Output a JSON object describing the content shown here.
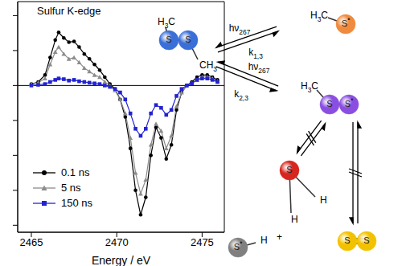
{
  "chart_data": {
    "type": "line",
    "title": "Sulfur K-edge",
    "x_label": "Energy / eV",
    "x": [
      2465.0,
      2465.4,
      2465.8,
      2466.1,
      2466.4,
      2466.6,
      2466.9,
      2467.2,
      2467.5,
      2467.8,
      2468.1,
      2468.4,
      2468.7,
      2469.0,
      2469.3,
      2469.6,
      2469.9,
      2470.2,
      2470.5,
      2470.8,
      2471.1,
      2471.4,
      2471.7,
      2472.0,
      2472.3,
      2472.6,
      2472.9,
      2473.2,
      2473.5,
      2473.8,
      2474.1,
      2474.4,
      2474.7,
      2475.0,
      2475.3,
      2475.6,
      2475.9
    ],
    "series": [
      {
        "name": "0.1 ns",
        "color": "#000000",
        "marker": "circle",
        "values": [
          0.02,
          0.05,
          0.15,
          0.4,
          0.65,
          0.76,
          0.68,
          0.62,
          0.63,
          0.55,
          0.45,
          0.38,
          0.3,
          0.22,
          0.12,
          0.02,
          -0.05,
          -0.2,
          -0.45,
          -0.9,
          -1.5,
          -1.85,
          -1.6,
          -1.0,
          -0.6,
          -0.75,
          -1.05,
          -0.85,
          -0.35,
          -0.1,
          0.0,
          0.05,
          0.12,
          0.15,
          0.15,
          0.12,
          0.08
        ]
      },
      {
        "name": "5 ns",
        "color": "#8c8c8c",
        "marker": "triangle",
        "values": [
          0.02,
          0.04,
          0.1,
          0.3,
          0.48,
          0.55,
          0.45,
          0.38,
          0.4,
          0.33,
          0.25,
          0.2,
          0.15,
          0.12,
          0.05,
          0.0,
          -0.07,
          -0.2,
          -0.4,
          -0.75,
          -1.25,
          -1.55,
          -1.35,
          -0.85,
          -0.55,
          -0.65,
          -0.9,
          -0.72,
          -0.3,
          -0.1,
          0.0,
          0.03,
          0.08,
          0.12,
          0.12,
          0.1,
          0.06
        ]
      },
      {
        "name": "150 ns",
        "color": "#2323d0",
        "marker": "square",
        "values": [
          0.0,
          0.01,
          0.02,
          0.05,
          0.08,
          0.1,
          0.09,
          0.07,
          0.08,
          0.06,
          0.05,
          0.04,
          0.03,
          0.02,
          0.0,
          -0.02,
          -0.05,
          -0.1,
          -0.2,
          -0.4,
          -0.62,
          -0.72,
          -0.62,
          -0.4,
          -0.28,
          -0.32,
          -0.42,
          -0.35,
          -0.15,
          -0.05,
          0.0,
          0.03,
          0.08,
          0.1,
          0.1,
          0.08,
          0.05
        ]
      }
    ],
    "xlim": [
      2464.2,
      2476.3
    ],
    "xticks": [
      2465,
      2470,
      2475
    ],
    "ylim": [
      -2.1,
      1.2
    ],
    "yticks": [
      -2,
      -1.5,
      -1,
      -0.5,
      0,
      0.5,
      1
    ],
    "tick_labels": "x",
    "legend": "lower left",
    "hlines": [
      0
    ]
  },
  "diagram": {
    "nodes": [
      {
        "color": "#3a6fd8",
        "texts": [
          [
            [
              "H",
              0
            ],
            [
              "3",
              1
            ],
            [
              "C",
              0
            ]
          ],
          [
            [
              "S",
              0
            ]
          ],
          [
            [
              "S",
              0
            ]
          ],
          [
            [
              "CH",
              0
            ],
            [
              "3",
              1
            ]
          ]
        ]
      },
      {
        "color": "#f08a3c",
        "texts": [
          [
            [
              "H",
              0
            ],
            [
              "3",
              1
            ],
            [
              "C",
              0
            ]
          ],
          [
            [
              "S",
              0
            ],
            [
              "•",
              2
            ]
          ]
        ]
      },
      {
        "color": "#8a4fe0",
        "texts": [
          [
            [
              "H",
              0
            ],
            [
              "3",
              1
            ],
            [
              "C",
              0
            ]
          ],
          [
            [
              "S",
              0
            ]
          ],
          [
            [
              "S",
              0
            ],
            [
              "•",
              2
            ]
          ]
        ]
      },
      {
        "color": "#d7261e",
        "texts": [
          [
            [
              "S",
              0
            ]
          ],
          [
            [
              "H",
              0
            ]
          ],
          [
            [
              "H",
              0
            ]
          ]
        ]
      },
      {
        "color": "#808080",
        "texts": [
          [
            [
              "S",
              0
            ],
            [
              "•",
              2
            ]
          ],
          [
            [
              "H",
              0
            ]
          ],
          [
            [
              "+",
              0
            ]
          ]
        ]
      },
      {
        "color": "#f2c200",
        "texts": [
          [
            [
              "S",
              0
            ]
          ],
          [
            [
              "S",
              0
            ]
          ]
        ]
      }
    ],
    "arrows": [
      {
        "labels": [
          [
            [
              "hν",
              0
            ],
            [
              "267",
              1
            ]
          ],
          [
            [
              "k",
              0
            ],
            [
              "1,3",
              1
            ]
          ]
        ]
      },
      {
        "labels": [
          [
            [
              "hν",
              0
            ],
            [
              "267",
              1
            ]
          ],
          [
            [
              "k",
              0
            ],
            [
              "2,3",
              1
            ]
          ]
        ]
      },
      {
        "labels": []
      },
      {
        "labels": []
      }
    ]
  }
}
